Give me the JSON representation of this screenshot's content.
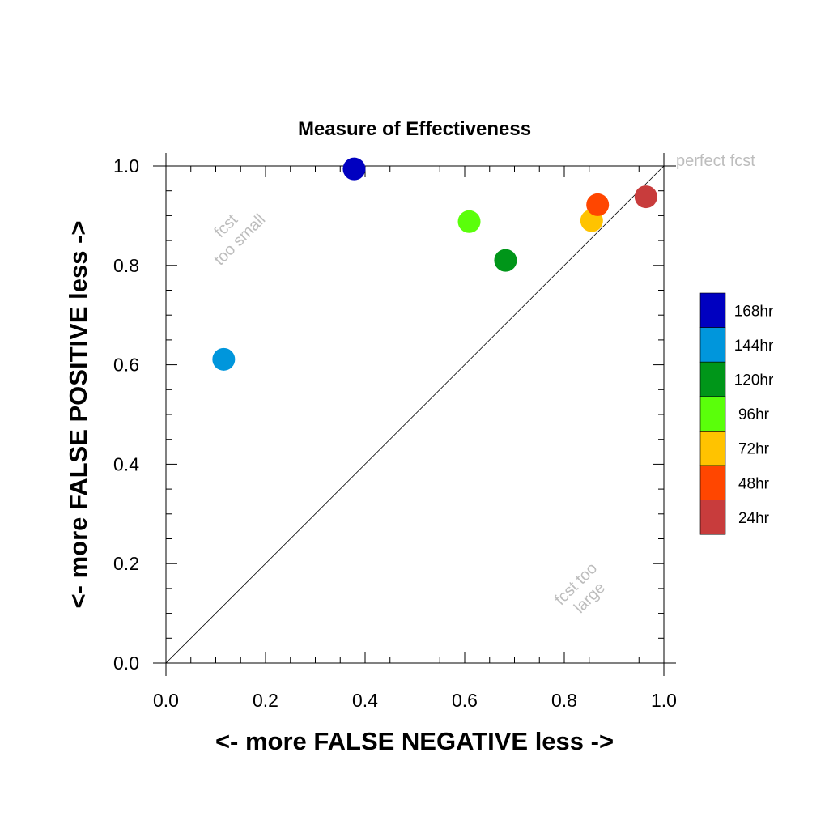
{
  "chart_data": {
    "type": "scatter",
    "title": "Measure of Effectiveness",
    "xlabel": "<- more   FALSE NEGATIVE   less ->",
    "ylabel": "<- more   FALSE POSITIVE   less ->",
    "xlim": [
      0.0,
      1.0
    ],
    "ylim": [
      0.0,
      1.0
    ],
    "xticks": [
      "0.0",
      "0.2",
      "0.4",
      "0.6",
      "0.8",
      "1.0"
    ],
    "yticks": [
      "0.0",
      "0.2",
      "0.4",
      "0.6",
      "0.8",
      "1.0"
    ],
    "grid": false,
    "reference_line": "diagonal y = x",
    "annotations": {
      "perfect": "perfect fcst",
      "small_line1": "fcst",
      "small_line2": "too small",
      "large_line1": "fcst too",
      "large_line2": "large"
    },
    "legend_position": "right",
    "series": [
      {
        "name": "168hr",
        "color": "#0000c0",
        "x": 0.378,
        "y": 0.994
      },
      {
        "name": "144hr",
        "color": "#0096dc",
        "x": 0.116,
        "y": 0.611
      },
      {
        "name": "120hr",
        "color": "#009619",
        "x": 0.682,
        "y": 0.81
      },
      {
        "name": "96hr",
        "color": "#5aff0a",
        "x": 0.609,
        "y": 0.888
      },
      {
        "name": "72hr",
        "color": "#ffc300",
        "x": 0.855,
        "y": 0.89
      },
      {
        "name": "48hr",
        "color": "#ff4600",
        "x": 0.867,
        "y": 0.922
      },
      {
        "name": "24hr",
        "color": "#c83c3c",
        "x": 0.964,
        "y": 0.938
      }
    ]
  }
}
